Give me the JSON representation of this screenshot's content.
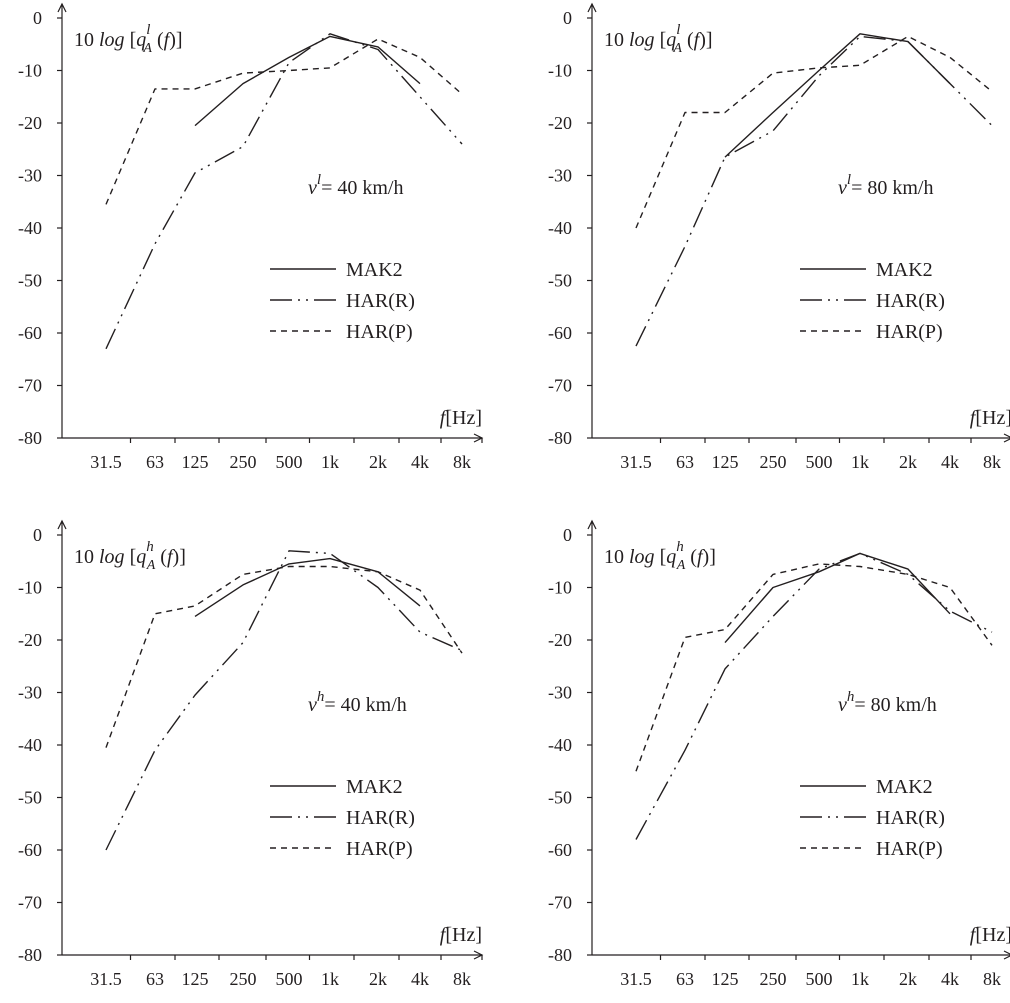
{
  "chart_data": [
    {
      "type": "line",
      "ylabel": {
        "prefix": "10",
        "log": "log",
        "q": "q",
        "sup": "l",
        "sub": "A",
        "arg": "f"
      },
      "xlabel": {
        "f": "f",
        "unit": "[Hz]"
      },
      "annotation": {
        "v": "v",
        "sup": "l",
        "text": "= 40 km/h"
      },
      "categories": [
        "31.5",
        "63",
        "125",
        "250",
        "500",
        "1k",
        "2k",
        "4k",
        "8k"
      ],
      "yticks": [
        "0",
        "-10",
        "-20",
        "-30",
        "-40",
        "-50",
        "-60",
        "-70",
        "-80"
      ],
      "ylim": [
        -80,
        0
      ],
      "series": [
        {
          "name": "MAK2",
          "values": [
            null,
            null,
            -20.5,
            -12.5,
            -7.5,
            -3.5,
            -5.5,
            -12.5,
            null
          ]
        },
        {
          "name": "HAR(R)",
          "values": [
            -63,
            -43,
            -29.5,
            -24.5,
            -8.5,
            -3,
            -6,
            -15,
            -24
          ]
        },
        {
          "name": "HAR(P)",
          "values": [
            -35.5,
            -13.5,
            -13.5,
            -10.5,
            -10,
            -9.5,
            -4,
            -7.5,
            -14.5
          ]
        }
      ]
    },
    {
      "type": "line",
      "ylabel": {
        "prefix": "10",
        "log": "log",
        "q": "q",
        "sup": "l",
        "sub": "A",
        "arg": "f"
      },
      "xlabel": {
        "f": "f",
        "unit": "[Hz]"
      },
      "annotation": {
        "v": "v",
        "sup": "l",
        "text": "= 80 km/h"
      },
      "categories": [
        "31.5",
        "63",
        "125",
        "250",
        "500",
        "1k",
        "2k",
        "4k",
        "8k"
      ],
      "yticks": [
        "0",
        "-10",
        "-20",
        "-30",
        "-40",
        "-50",
        "-60",
        "-70",
        "-80"
      ],
      "ylim": [
        -80,
        0
      ],
      "series": [
        {
          "name": "MAK2",
          "values": [
            null,
            null,
            -26.5,
            -18,
            -10,
            -3,
            -4.5,
            -12.5,
            null
          ]
        },
        {
          "name": "HAR(R)",
          "values": [
            -62.5,
            -43.5,
            -26.5,
            -21.5,
            -11,
            -3.5,
            -4.5,
            -12.5,
            -20.5
          ]
        },
        {
          "name": "HAR(P)",
          "values": [
            -40,
            -18,
            -18,
            -10.5,
            -9.5,
            -9,
            -3.5,
            -7.5,
            -14
          ]
        }
      ]
    },
    {
      "type": "line",
      "ylabel": {
        "prefix": "10",
        "log": "log",
        "q": "q",
        "sup": "h",
        "sub": "A",
        "arg": "f"
      },
      "xlabel": {
        "f": "f",
        "unit": "[Hz]"
      },
      "annotation": {
        "v": "v",
        "sup": "h",
        "text": "= 40 km/h"
      },
      "categories": [
        "31.5",
        "63",
        "125",
        "250",
        "500",
        "1k",
        "2k",
        "4k",
        "8k"
      ],
      "yticks": [
        "0",
        "-10",
        "-20",
        "-30",
        "-40",
        "-50",
        "-60",
        "-70",
        "-80"
      ],
      "ylim": [
        -80,
        0
      ],
      "series": [
        {
          "name": "MAK2",
          "values": [
            null,
            null,
            -15.5,
            -9.5,
            -5.5,
            -4.5,
            -7,
            -13.5,
            null
          ]
        },
        {
          "name": "HAR(R)",
          "values": [
            -60,
            -41,
            -30.5,
            -20.5,
            -3,
            -3.5,
            -10,
            -18.5,
            -22
          ]
        },
        {
          "name": "HAR(P)",
          "values": [
            -40.5,
            -15,
            -13.5,
            -7.5,
            -6,
            -6,
            -7,
            -10.5,
            -22.5
          ]
        }
      ]
    },
    {
      "type": "line",
      "ylabel": {
        "prefix": "10",
        "log": "log",
        "q": "q",
        "sup": "h",
        "sub": "A",
        "arg": "f"
      },
      "xlabel": {
        "f": "f",
        "unit": "[Hz]"
      },
      "annotation": {
        "v": "v",
        "sup": "h",
        "text": "= 80 km/h"
      },
      "categories": [
        "31.5",
        "63",
        "125",
        "250",
        "500",
        "1k",
        "2k",
        "4k",
        "8k"
      ],
      "yticks": [
        "0",
        "-10",
        "-20",
        "-30",
        "-40",
        "-50",
        "-60",
        "-70",
        "-80"
      ],
      "ylim": [
        -80,
        0
      ],
      "series": [
        {
          "name": "MAK2",
          "values": [
            null,
            null,
            -20.5,
            -10,
            -7,
            -3.5,
            -6.5,
            -15,
            null
          ]
        },
        {
          "name": "HAR(R)",
          "values": [
            -58,
            -41,
            -25.5,
            -15.5,
            -6.5,
            -3.5,
            -7.5,
            -14.5,
            -18.5
          ]
        },
        {
          "name": "HAR(P)",
          "values": [
            -45,
            -19.5,
            -18,
            -7.5,
            -5.5,
            -6,
            -7.5,
            -10,
            -21
          ]
        }
      ]
    }
  ]
}
